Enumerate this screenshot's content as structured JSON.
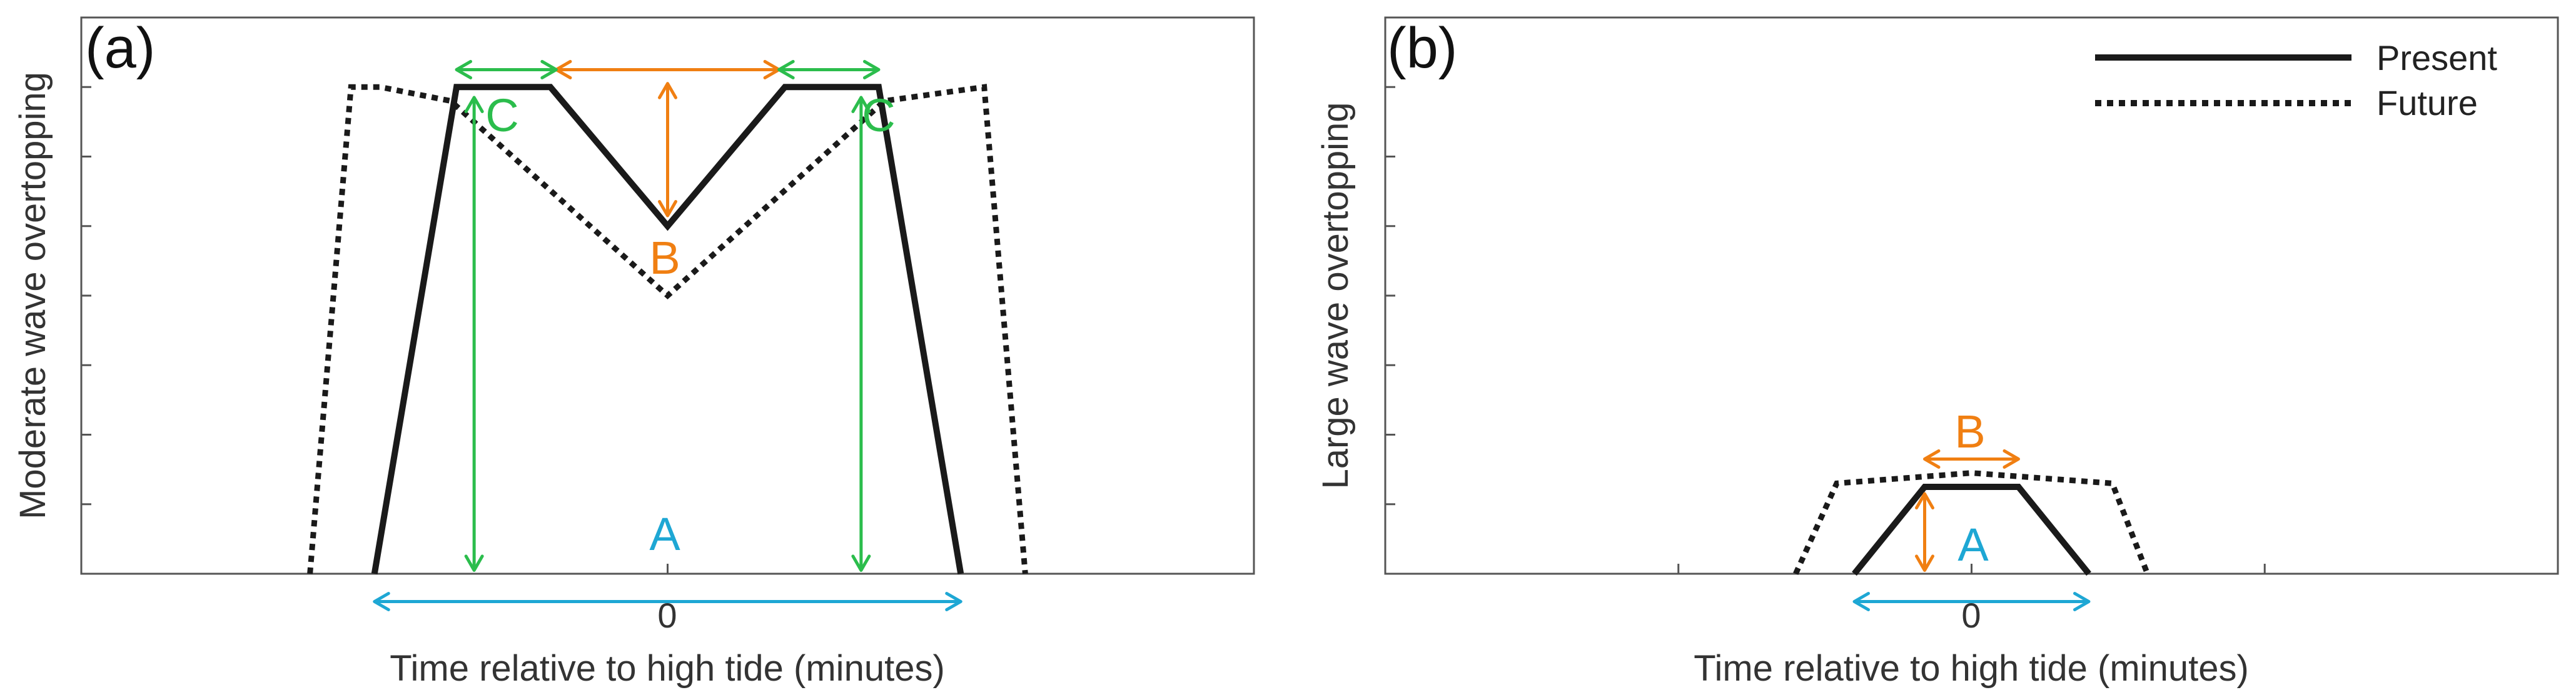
{
  "chart_data": [
    {
      "type": "line",
      "panel_label": "(a)",
      "xlabel": "Time relative to high tide (minutes)",
      "ylabel": "Moderate wave overtopping",
      "x_tick_labels": [
        "0"
      ],
      "xlim": [
        -10,
        10
      ],
      "ylim": [
        0,
        8
      ],
      "grid": false,
      "series": [
        {
          "name": "Present",
          "style": "solid",
          "x": [
            -5,
            -3.6,
            -2,
            0,
            2,
            3.6,
            5
          ],
          "y": [
            0,
            7,
            7,
            5,
            7,
            7,
            0
          ]
        },
        {
          "name": "Future",
          "style": "dotted",
          "x": [
            -6.1,
            -5.4,
            -4.9,
            -3.7,
            0,
            3.7,
            5.4,
            6.1
          ],
          "y": [
            0,
            7,
            7,
            6.8,
            4,
            6.8,
            7,
            0
          ]
        }
      ],
      "annotations": [
        {
          "text": "A",
          "color": "#1ea7d4",
          "kind": "double-arrow-horizontal",
          "from": [
            -5,
            -0.4
          ],
          "to": [
            5,
            -0.4
          ]
        },
        {
          "text": "B",
          "color": "#f07f12",
          "kind": "double-arrow-horizontal",
          "from": [
            -1.9,
            7.25
          ],
          "to": [
            1.9,
            7.25
          ]
        },
        {
          "text": "",
          "color": "#f07f12",
          "kind": "double-arrow-vertical",
          "from": [
            0,
            7.05
          ],
          "to": [
            0,
            5.15
          ]
        },
        {
          "text": "C",
          "color": "#2bbd4c",
          "kind": "double-arrow-horizontal",
          "from": [
            -3.6,
            7.25
          ],
          "to": [
            -1.9,
            7.25
          ]
        },
        {
          "text": "C",
          "color": "#2bbd4c",
          "kind": "double-arrow-horizontal",
          "from": [
            1.9,
            7.25
          ],
          "to": [
            3.6,
            7.25
          ]
        },
        {
          "text": "",
          "color": "#2bbd4c",
          "kind": "double-arrow-vertical",
          "from": [
            -3.3,
            6.85
          ],
          "to": [
            -3.3,
            0.05
          ]
        },
        {
          "text": "",
          "color": "#2bbd4c",
          "kind": "double-arrow-vertical",
          "from": [
            3.3,
            6.85
          ],
          "to": [
            3.3,
            0.05
          ]
        }
      ]
    },
    {
      "type": "line",
      "panel_label": "(b)",
      "xlabel": "Time relative to high tide (minutes)",
      "ylabel": "Large wave overtopping",
      "x_tick_labels": [
        "0"
      ],
      "xlim": [
        -10,
        10
      ],
      "ylim": [
        0,
        8
      ],
      "grid": false,
      "legend": {
        "placement": "top-right",
        "entries": [
          "Present",
          "Future"
        ]
      },
      "series": [
        {
          "name": "Present",
          "style": "solid",
          "x": [
            -2,
            -0.8,
            0.8,
            2
          ],
          "y": [
            0,
            1.25,
            1.25,
            0
          ]
        },
        {
          "name": "Future",
          "style": "dotted",
          "x": [
            -3,
            -2.3,
            0,
            2.4,
            3
          ],
          "y": [
            0,
            1.3,
            1.45,
            1.3,
            0
          ]
        }
      ],
      "annotations": [
        {
          "text": "A",
          "color": "#1ea7d4",
          "kind": "double-arrow-horizontal",
          "from": [
            -2,
            -0.4
          ],
          "to": [
            2,
            -0.4
          ]
        },
        {
          "text": "",
          "color": "#f07f12",
          "kind": "double-arrow-vertical",
          "from": [
            -0.8,
            1.15
          ],
          "to": [
            -0.8,
            0.05
          ]
        },
        {
          "text": "B",
          "color": "#f07f12",
          "kind": "double-arrow-horizontal",
          "from": [
            -0.8,
            1.65
          ],
          "to": [
            0.8,
            1.65
          ]
        }
      ]
    }
  ],
  "colors": {
    "axis": "#555555",
    "line": "#1a1a1a",
    "A": "#1ea7d4",
    "B": "#f07f12",
    "C": "#2bbd4c"
  }
}
